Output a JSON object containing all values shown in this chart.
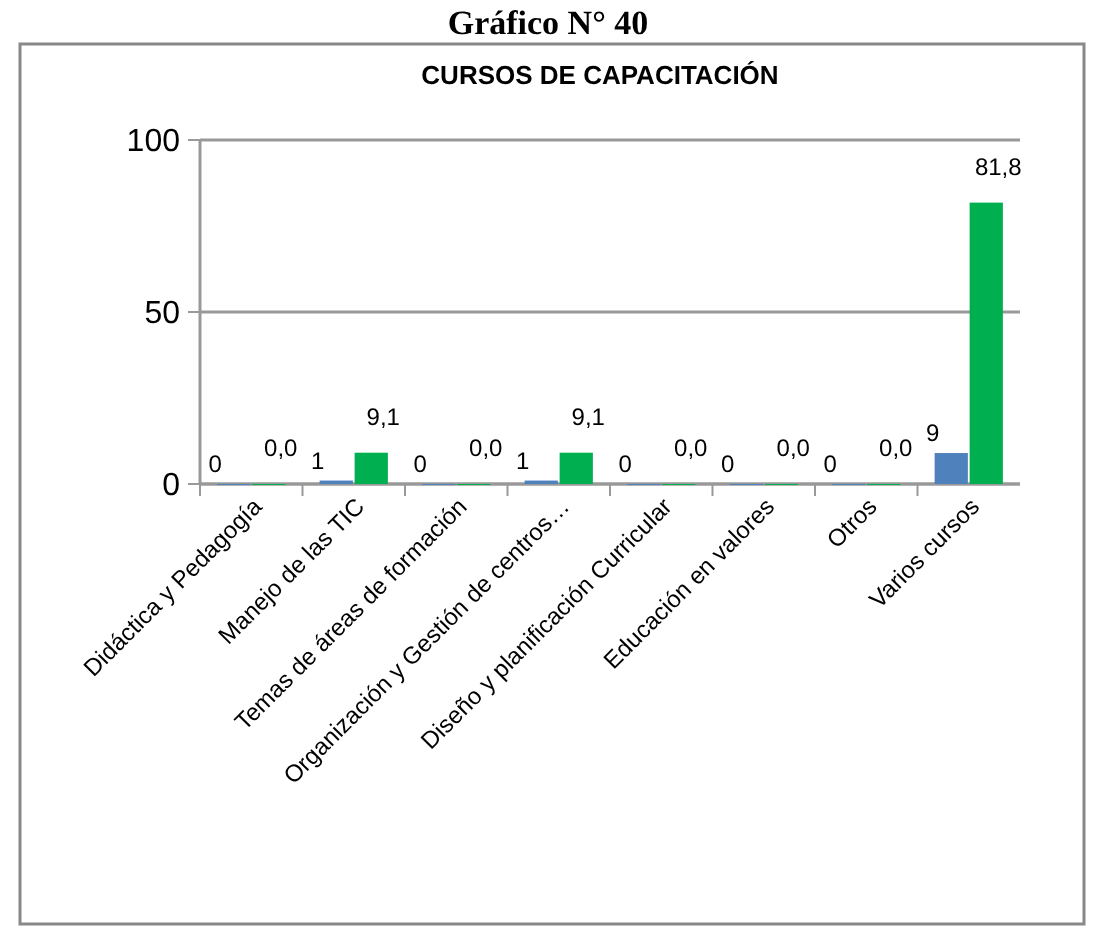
{
  "chart_data": {
    "type": "bar",
    "title": "Gráfico N° 40",
    "subtitle": "CURSOS DE CAPACITACIÓN",
    "categories": [
      "Didáctica y Pedagogía",
      "Manejo de las TIC",
      "Temas de áreas de formación",
      "Organización y Gestión de centros…",
      "Diseño y planificación Curricular",
      "Educación en valores",
      "Otros",
      "Varios cursos"
    ],
    "series": [
      {
        "color": "#4f81bd",
        "values": [
          0,
          1,
          0,
          1,
          0,
          0,
          0,
          9
        ],
        "value_labels": [
          "0",
          "1",
          "0",
          "1",
          "0",
          "0",
          "0",
          "9"
        ]
      },
      {
        "color": "#00b050",
        "values": [
          0,
          9.1,
          0,
          9.1,
          0,
          0,
          0,
          81.8
        ],
        "value_labels": [
          "0,0",
          "9,1",
          "0,0",
          "9,1",
          "0,0",
          "0,0",
          "0,0",
          "81,8"
        ]
      }
    ],
    "ylim": [
      0,
      100
    ],
    "yticks": [
      0,
      50,
      100
    ],
    "grid": "y"
  }
}
